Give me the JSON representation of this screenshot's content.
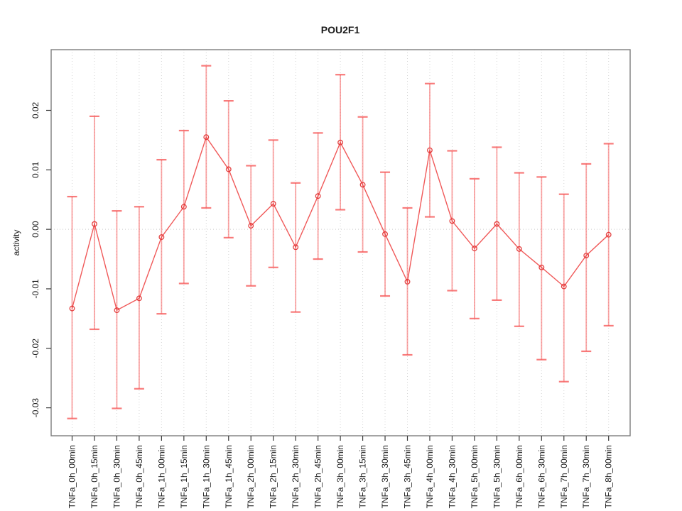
{
  "window": {
    "background": "#ffffff"
  },
  "chart_data": {
    "type": "line",
    "title": "POU2F1",
    "xlabel": "",
    "ylabel": "activity",
    "legend": "none",
    "grid": "vertical dotted gridlines at each category; dotted horizontal line at y=0",
    "ylim": [
      -0.0347,
      0.0302
    ],
    "yticks": [
      -0.03,
      -0.02,
      -0.01,
      0.0,
      0.01,
      0.02
    ],
    "ytick_labels": [
      "-0.03",
      "-0.02",
      "-0.01",
      "0.00",
      "0.01",
      "0.02"
    ],
    "categories": [
      "TNFa_0h_00min",
      "TNFa_0h_15min",
      "TNFa_0h_30min",
      "TNFa_0h_45min",
      "TNFa_1h_00min",
      "TNFa_1h_15min",
      "TNFa_1h_30min",
      "TNFa_1h_45min",
      "TNFa_2h_00min",
      "TNFa_2h_15min",
      "TNFa_2h_30min",
      "TNFa_2h_45min",
      "TNFa_3h_00min",
      "TNFa_3h_15min",
      "TNFa_3h_30min",
      "TNFa_3h_45min",
      "TNFa_4h_00min",
      "TNFa_4h_30min",
      "TNFa_5h_00min",
      "TNFa_5h_30min",
      "TNFa_6h_00min",
      "TNFa_6h_30min",
      "TNFa_7h_00min",
      "TNFa_7h_30min",
      "TNFa_8h_00min"
    ],
    "series": [
      {
        "name": "activity",
        "marker": "open-circle",
        "values": [
          -0.0133,
          0.0009,
          -0.0136,
          -0.0116,
          -0.0013,
          0.0038,
          0.0155,
          0.0101,
          0.0006,
          0.0043,
          -0.003,
          0.0056,
          0.0146,
          0.0075,
          -0.0008,
          -0.0088,
          0.0133,
          0.0014,
          -0.0032,
          0.0009,
          -0.0033,
          -0.0064,
          -0.0096,
          -0.0044,
          -0.0009
        ],
        "error_lower": [
          -0.0318,
          -0.0168,
          -0.0301,
          -0.0268,
          -0.0142,
          -0.0091,
          0.0036,
          -0.0014,
          -0.0095,
          -0.0064,
          -0.0139,
          -0.005,
          0.0033,
          -0.0038,
          -0.0112,
          -0.0211,
          0.0021,
          -0.0103,
          -0.015,
          -0.0119,
          -0.0163,
          -0.0219,
          -0.0256,
          -0.0205,
          -0.0162
        ],
        "error_upper": [
          0.0055,
          0.019,
          0.0031,
          0.0038,
          0.0117,
          0.0166,
          0.0275,
          0.0216,
          0.0107,
          0.015,
          0.0078,
          0.0162,
          0.026,
          0.0189,
          0.0096,
          0.0036,
          0.0245,
          0.0132,
          0.0085,
          0.0138,
          0.0095,
          0.0088,
          0.0059,
          0.011,
          0.0144
        ]
      }
    ],
    "colors": {
      "line": "rgba(237,60,60,0.85)",
      "marker_stroke": "rgba(224,45,45,0.9)",
      "error_bar": "rgba(246,90,90,0.55)",
      "error_cap": "rgba(246,90,90,0.8)",
      "gridline": "#d4d4d4",
      "zero_line": "#c9c9c9",
      "frame": "#7d7d7d",
      "tick": "#3a3a3a"
    }
  }
}
